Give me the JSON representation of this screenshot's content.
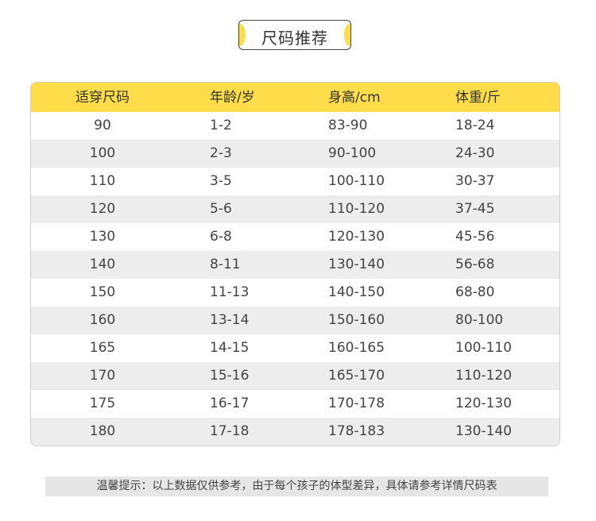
{
  "title": "尺码推荐",
  "colors": {
    "accent": "#ffdd4a",
    "alt_row": "#ededed"
  },
  "table": {
    "headers": [
      "适穿尺码",
      "年龄/岁",
      "身高/cm",
      "体重/斤"
    ],
    "rows": [
      [
        "90",
        "1-2",
        "83-90",
        "18-24"
      ],
      [
        "100",
        "2-3",
        "90-100",
        "24-30"
      ],
      [
        "110",
        "3-5",
        "100-110",
        "30-37"
      ],
      [
        "120",
        "5-6",
        "110-120",
        "37-45"
      ],
      [
        "130",
        "6-8",
        "120-130",
        "45-56"
      ],
      [
        "140",
        "8-11",
        "130-140",
        "56-68"
      ],
      [
        "150",
        "11-13",
        "140-150",
        "68-80"
      ],
      [
        "160",
        "13-14",
        "150-160",
        "80-100"
      ],
      [
        "165",
        "14-15",
        "160-165",
        "100-110"
      ],
      [
        "170",
        "15-16",
        "165-170",
        "110-120"
      ],
      [
        "175",
        "16-17",
        "170-178",
        "120-130"
      ],
      [
        "180",
        "17-18",
        "178-183",
        "130-140"
      ]
    ]
  },
  "footer_note": "温馨提示：以上数据仅供参考，由于每个孩子的体型差异，具体请参考详情尺码表"
}
